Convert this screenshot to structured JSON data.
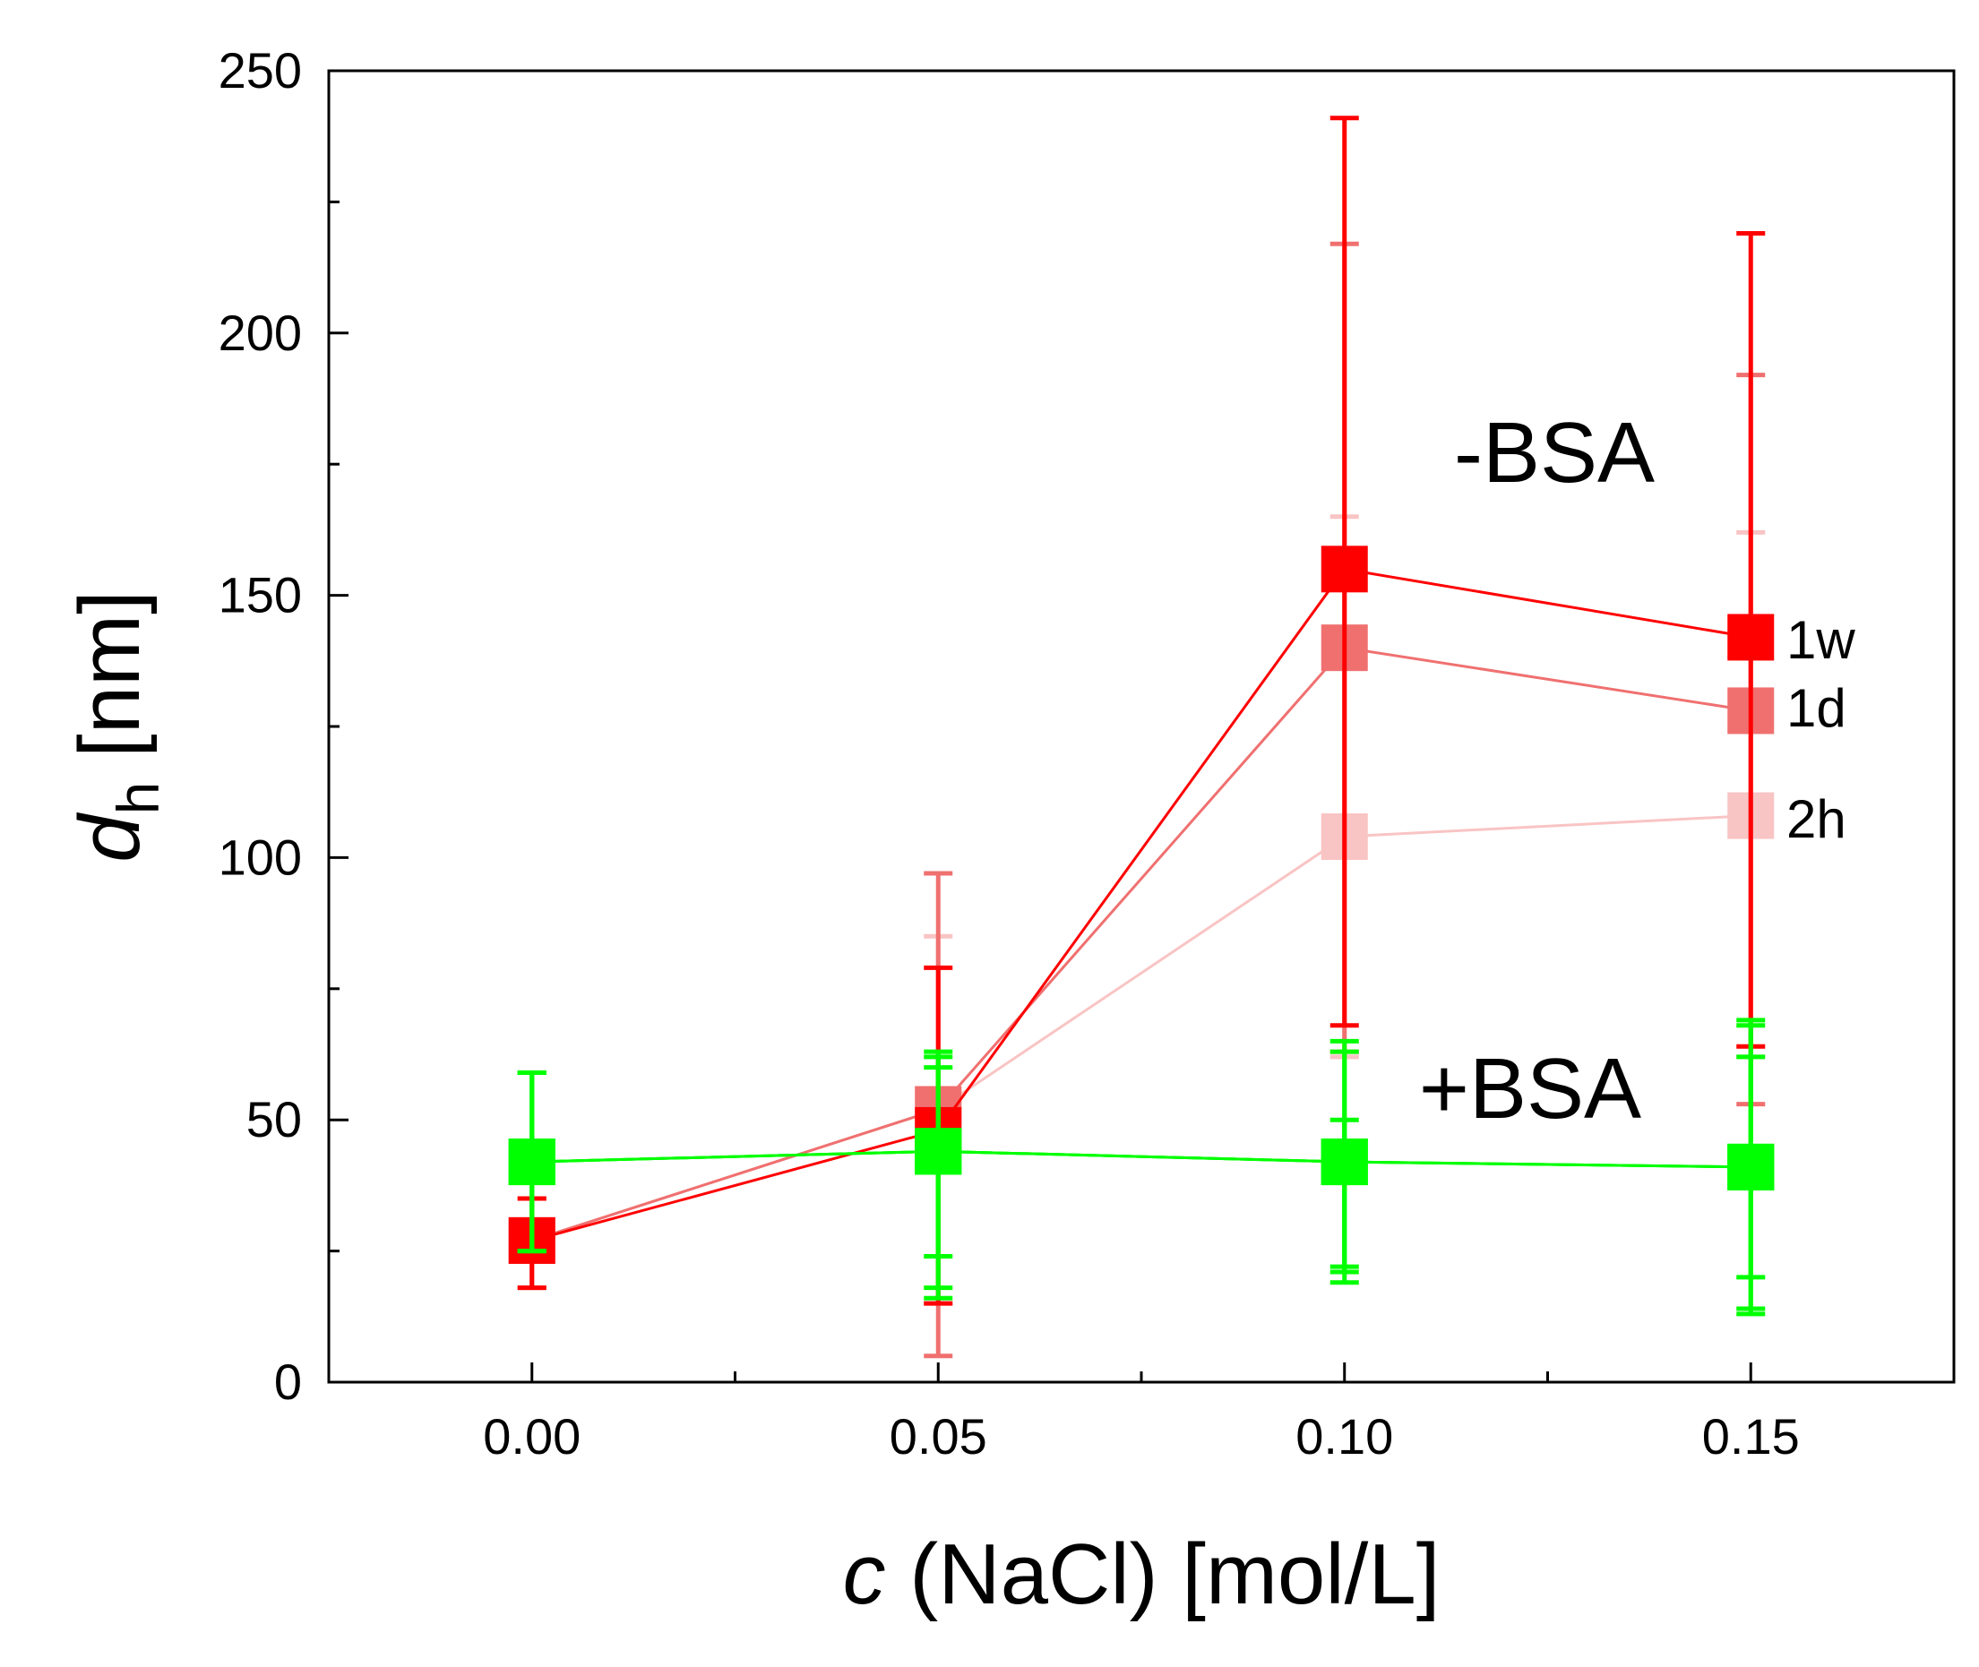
{
  "chart_data": {
    "type": "scatter",
    "xlabel": {
      "italic": "c",
      "rest": " (NaCl) [mol/L]"
    },
    "ylabel": {
      "italic": "d",
      "sub": "h",
      "rest": " [nm]"
    },
    "xlim": [
      -0.025,
      0.175
    ],
    "ylim": [
      0,
      250
    ],
    "x_ticks": [
      0.0,
      0.05,
      0.1,
      0.15
    ],
    "x_tick_labels": [
      "0.00",
      "0.05",
      "0.10",
      "0.15"
    ],
    "x_minor_ticks": [
      0.025,
      0.075,
      0.125
    ],
    "y_ticks": [
      0,
      50,
      100,
      150,
      200,
      250
    ],
    "y_tick_labels": [
      "0",
      "50",
      "100",
      "150",
      "200",
      "250"
    ],
    "y_minor_ticks": [
      25,
      75,
      125,
      175,
      225
    ],
    "legend": "inline-right",
    "series": [
      {
        "name": "2h",
        "group": "-BSA",
        "color": "#f9c4c4",
        "line_color": "#f9c4c4",
        "x": [
          0.0,
          0.05,
          0.1,
          0.15
        ],
        "y": [
          27,
          52,
          104,
          108
        ],
        "err_low": [
          18,
          15,
          62,
          62
        ],
        "err_high": [
          35,
          85,
          165,
          162
        ]
      },
      {
        "name": "1d",
        "group": "-BSA",
        "color": "#f07070",
        "line_color": "#f07070",
        "x": [
          0.0,
          0.05,
          0.1,
          0.15
        ],
        "y": [
          27,
          52,
          140,
          128
        ],
        "err_low": [
          18,
          5,
          63,
          53
        ],
        "err_high": [
          35,
          97,
          217,
          192
        ]
      },
      {
        "name": "1w",
        "group": "-BSA",
        "color": "#ff0000",
        "line_color": "#ff0000",
        "x": [
          0.0,
          0.05,
          0.1,
          0.15
        ],
        "y": [
          27,
          48,
          155,
          142
        ],
        "err_low": [
          18,
          15,
          68,
          64
        ],
        "err_high": [
          35,
          79,
          241,
          219
        ]
      },
      {
        "name": "+BSA 2h",
        "group": "+BSA",
        "color": "#00ff00",
        "line_color": "#00ff00",
        "x": [
          0.0,
          0.05,
          0.1,
          0.15
        ],
        "y": [
          42,
          44,
          42,
          41
        ],
        "err_low": [
          25,
          16,
          21,
          20
        ],
        "err_high": [
          59,
          60,
          63,
          62
        ]
      },
      {
        "name": "+BSA 1d",
        "group": "+BSA",
        "color": "#00ff00",
        "line_color": "#00ff00",
        "x": [
          0.0,
          0.05,
          0.1,
          0.15
        ],
        "y": [
          42,
          44,
          42,
          41
        ],
        "err_low": [
          25,
          18,
          22,
          14
        ],
        "err_high": [
          59,
          62,
          65,
          69
        ]
      },
      {
        "name": "+BSA 1w",
        "group": "+BSA",
        "color": "#00ff00",
        "line_color": "#00ff00",
        "x": [
          0.0,
          0.05,
          0.1,
          0.15
        ],
        "y": [
          42,
          44,
          42,
          41
        ],
        "err_low": [
          25,
          24,
          19,
          13
        ],
        "err_high": [
          59,
          63,
          50,
          68
        ]
      }
    ],
    "annotations": {
      "minus_bsa": "-BSA",
      "plus_bsa": "+BSA",
      "label_1w": "1w",
      "label_1d": "1d",
      "label_2h": "2h"
    }
  }
}
